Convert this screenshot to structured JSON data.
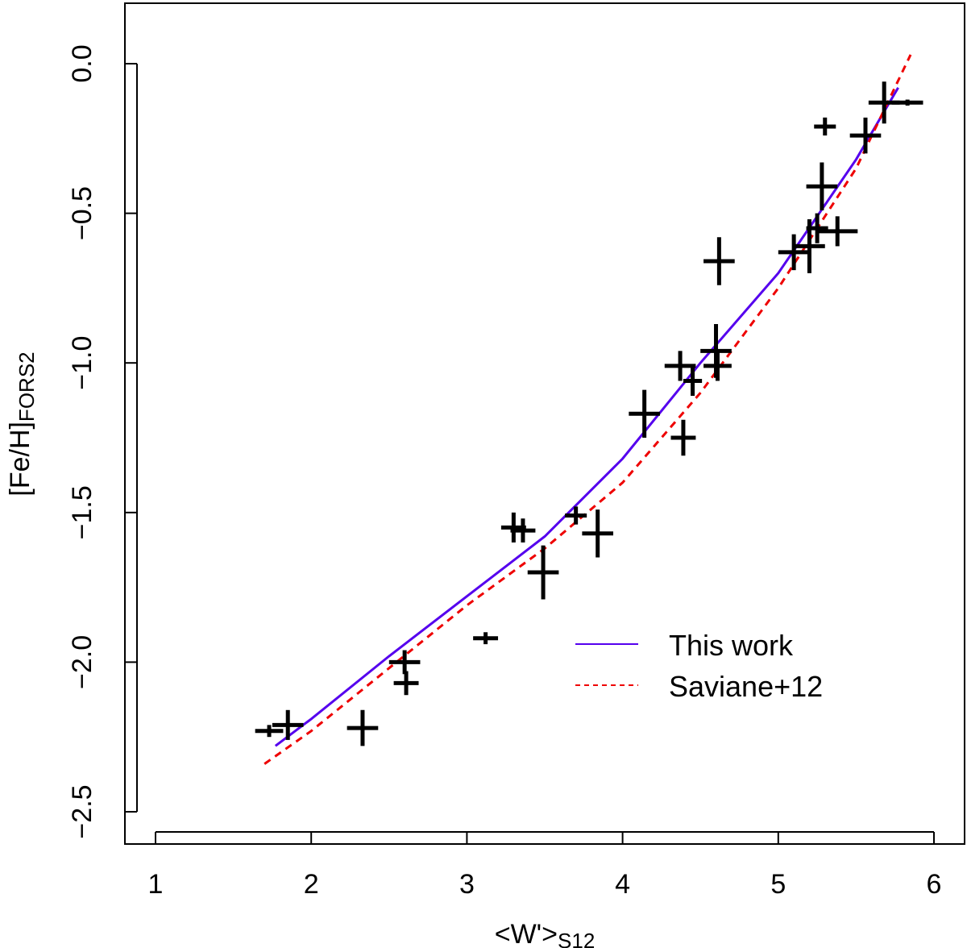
{
  "chart_data": {
    "type": "scatter",
    "title": "",
    "xlabel": "<W'>",
    "xlabel_sub": "S12",
    "ylabel": "[Fe/H]",
    "ylabel_sub": "FORS2",
    "xlim": [
      0.8,
      6.2
    ],
    "ylim": [
      -2.6,
      0.2
    ],
    "x_ticks": [
      1,
      2,
      3,
      4,
      5,
      6
    ],
    "x_tick_labels": [
      "1",
      "2",
      "3",
      "4",
      "5",
      "6"
    ],
    "y_ticks": [
      0.0,
      -0.5,
      -1.0,
      -1.5,
      -2.0,
      -2.5
    ],
    "y_tick_labels": [
      "0.0",
      "−0.5",
      "−1.0",
      "−1.5",
      "−2.0",
      "−2.5"
    ],
    "grid": false,
    "legend_position": "bottom-right",
    "points": [
      {
        "x": 1.73,
        "y": -2.23,
        "xerr": 0.09,
        "yerr": 0.02
      },
      {
        "x": 1.85,
        "y": -2.21,
        "xerr": 0.1,
        "yerr": 0.05
      },
      {
        "x": 2.33,
        "y": -2.22,
        "xerr": 0.1,
        "yerr": 0.06
      },
      {
        "x": 2.6,
        "y": -2.0,
        "xerr": 0.1,
        "yerr": 0.04
      },
      {
        "x": 2.61,
        "y": -2.07,
        "xerr": 0.08,
        "yerr": 0.04
      },
      {
        "x": 3.12,
        "y": -1.92,
        "xerr": 0.08,
        "yerr": 0.02
      },
      {
        "x": 3.3,
        "y": -1.55,
        "xerr": 0.08,
        "yerr": 0.05
      },
      {
        "x": 3.36,
        "y": -1.56,
        "xerr": 0.08,
        "yerr": 0.04
      },
      {
        "x": 3.49,
        "y": -1.7,
        "xerr": 0.1,
        "yerr": 0.09
      },
      {
        "x": 3.7,
        "y": -1.51,
        "xerr": 0.07,
        "yerr": 0.03
      },
      {
        "x": 3.84,
        "y": -1.57,
        "xerr": 0.1,
        "yerr": 0.08
      },
      {
        "x": 4.14,
        "y": -1.17,
        "xerr": 0.1,
        "yerr": 0.08
      },
      {
        "x": 4.37,
        "y": -1.01,
        "xerr": 0.1,
        "yerr": 0.05
      },
      {
        "x": 4.39,
        "y": -1.25,
        "xerr": 0.08,
        "yerr": 0.06
      },
      {
        "x": 4.45,
        "y": -1.06,
        "xerr": 0.06,
        "yerr": 0.05
      },
      {
        "x": 4.6,
        "y": -0.96,
        "xerr": 0.1,
        "yerr": 0.09
      },
      {
        "x": 4.61,
        "y": -1.01,
        "xerr": 0.09,
        "yerr": 0.05
      },
      {
        "x": 4.62,
        "y": -0.66,
        "xerr": 0.1,
        "yerr": 0.08
      },
      {
        "x": 5.1,
        "y": -0.63,
        "xerr": 0.1,
        "yerr": 0.06
      },
      {
        "x": 5.2,
        "y": -0.61,
        "xerr": 0.1,
        "yerr": 0.09
      },
      {
        "x": 5.25,
        "y": -0.55,
        "xerr": 0.07,
        "yerr": 0.05
      },
      {
        "x": 5.28,
        "y": -0.41,
        "xerr": 0.1,
        "yerr": 0.08
      },
      {
        "x": 5.3,
        "y": -0.21,
        "xerr": 0.07,
        "yerr": 0.03
      },
      {
        "x": 5.38,
        "y": -0.56,
        "xerr": 0.13,
        "yerr": 0.05
      },
      {
        "x": 5.56,
        "y": -0.24,
        "xerr": 0.1,
        "yerr": 0.06
      },
      {
        "x": 5.68,
        "y": -0.13,
        "xerr": 0.1,
        "yerr": 0.07
      },
      {
        "x": 5.83,
        "y": -0.13,
        "xerr": 0.1,
        "yerr": 0.01
      }
    ],
    "series": [
      {
        "name": "This work",
        "style": "solid",
        "color": "#5500ee",
        "x": [
          1.77,
          2.0,
          2.5,
          3.0,
          3.5,
          4.0,
          4.5,
          5.0,
          5.5,
          5.77
        ],
        "y": [
          -2.28,
          -2.19,
          -1.98,
          -1.78,
          -1.58,
          -1.32,
          -1.0,
          -0.7,
          -0.32,
          -0.08
        ]
      },
      {
        "name": "Saviane+12",
        "style": "dashed",
        "color": "#ee0000",
        "x": [
          1.7,
          2.0,
          2.5,
          3.0,
          3.5,
          4.0,
          4.5,
          5.0,
          5.5,
          5.85
        ],
        "y": [
          -2.34,
          -2.23,
          -2.02,
          -1.81,
          -1.62,
          -1.4,
          -1.1,
          -0.75,
          -0.35,
          0.03
        ]
      }
    ]
  }
}
